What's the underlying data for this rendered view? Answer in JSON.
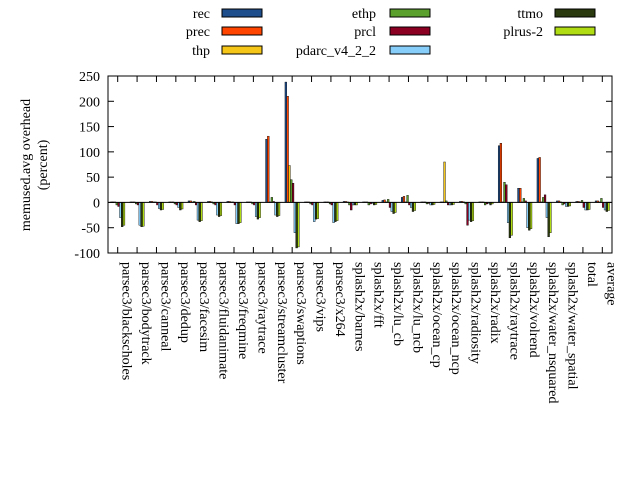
{
  "chart_data": {
    "type": "bar",
    "xlabel": "",
    "ylabel": "memused.avg overhead",
    "ylabel2": "(percent)",
    "ylim": [
      -100,
      250
    ],
    "yticks": [
      -100,
      -50,
      0,
      50,
      100,
      150,
      200,
      250
    ],
    "grid": false,
    "legend_position": "top",
    "categories": [
      "parsec3/blackscholes",
      "parsec3/bodytrack",
      "parsec3/canneal",
      "parsec3/dedup",
      "parsec3/facesim",
      "parsec3/fluidanimate",
      "parsec3/freqmine",
      "parsec3/raytrace",
      "parsec3/streamcluster",
      "parsec3/swaptions",
      "parsec3/vips",
      "parsec3/x264",
      "splash2x/barnes",
      "splash2x/fft",
      "splash2x/lu_cb",
      "splash2x/lu_ncb",
      "splash2x/ocean_cp",
      "splash2x/ocean_ncp",
      "splash2x/radiosity",
      "splash2x/radix",
      "splash2x/raytrace",
      "splash2x/volrend",
      "splash2x/water_nsquared",
      "splash2x/water_spatial",
      "total",
      "average"
    ],
    "series": [
      {
        "name": "rec",
        "color": "#1f4e8c",
        "values": [
          1,
          1,
          2,
          1,
          3,
          2,
          2,
          1,
          125,
          238,
          1,
          1,
          2,
          1,
          4,
          10,
          1,
          1,
          2,
          1,
          112,
          28,
          87,
          3,
          2,
          3
        ]
      },
      {
        "name": "prec",
        "color": "#ff4500",
        "values": [
          1,
          1,
          2,
          1,
          3,
          2,
          2,
          1,
          131,
          210,
          1,
          1,
          2,
          1,
          5,
          12,
          1,
          1,
          2,
          1,
          117,
          28,
          89,
          3,
          2,
          3
        ]
      },
      {
        "name": "thp",
        "color": "#f5c518",
        "values": [
          1,
          1,
          1,
          1,
          1,
          1,
          1,
          1,
          1,
          73,
          1,
          1,
          1,
          1,
          1,
          1,
          1,
          80,
          1,
          1,
          1,
          1,
          1,
          1,
          1,
          1
        ]
      },
      {
        "name": "ethp",
        "color": "#5aa02c",
        "values": [
          -5,
          -3,
          1,
          -3,
          2,
          -3,
          1,
          -3,
          10,
          45,
          -3,
          -3,
          -5,
          -5,
          6,
          14,
          -3,
          3,
          -3,
          -5,
          40,
          8,
          10,
          -5,
          4,
          8
        ]
      },
      {
        "name": "prcl",
        "color": "#8b0022",
        "values": [
          -8,
          -5,
          -5,
          -5,
          -5,
          -5,
          -5,
          -5,
          2,
          38,
          -5,
          -5,
          -15,
          -3,
          -10,
          -5,
          -2,
          -5,
          -45,
          -3,
          35,
          3,
          15,
          -3,
          -10,
          -10
        ]
      },
      {
        "name": "pdarc_v4_2_2",
        "color": "#87cefa",
        "values": [
          -30,
          -45,
          -12,
          -10,
          -35,
          -25,
          -42,
          -28,
          -25,
          -60,
          -38,
          -40,
          -5,
          -2,
          -18,
          -10,
          -5,
          -5,
          -35,
          -2,
          -40,
          -50,
          -30,
          -8,
          -15,
          -15
        ]
      },
      {
        "name": "ttmo",
        "color": "#2b3a0e",
        "values": [
          -48,
          -48,
          -15,
          -15,
          -38,
          -28,
          -42,
          -33,
          -28,
          -90,
          -33,
          -38,
          -5,
          -5,
          -22,
          -18,
          -5,
          -5,
          -38,
          -5,
          -70,
          -55,
          -68,
          -8,
          -15,
          -18
        ]
      },
      {
        "name": "plrus-2",
        "color": "#b0dc14",
        "values": [
          -45,
          -47,
          -14,
          -13,
          -36,
          -26,
          -40,
          -30,
          -26,
          -88,
          -32,
          -36,
          -5,
          -4,
          -20,
          -16,
          -4,
          -4,
          -36,
          -3,
          -65,
          -52,
          -60,
          -7,
          -14,
          -16
        ]
      }
    ]
  }
}
